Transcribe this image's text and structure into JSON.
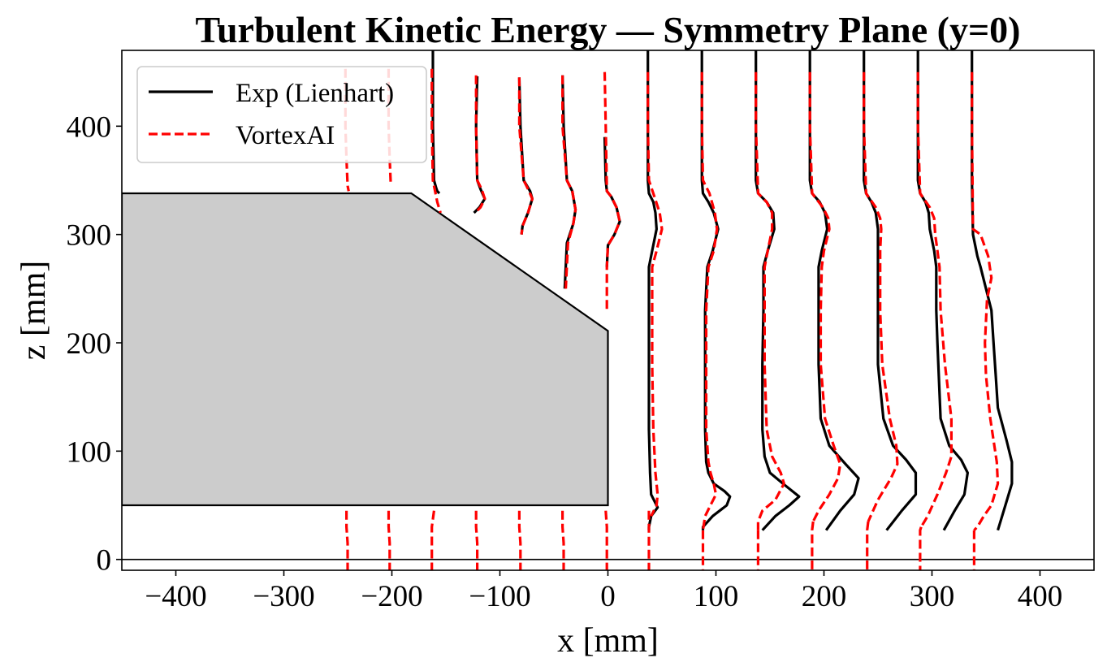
{
  "chart_data": {
    "type": "line",
    "title": "Turbulent Kinetic Energy — Symmetry Plane (y=0)",
    "xlabel": "x [mm]",
    "ylabel": "z [mm]",
    "xlim": [
      -450,
      450
    ],
    "ylim": [
      -10,
      470
    ],
    "xticks": [
      -400,
      -300,
      -200,
      -100,
      0,
      100,
      200,
      300,
      400
    ],
    "xtick_labels": [
      "−400",
      "−300",
      "−200",
      "−100",
      "0",
      "100",
      "200",
      "300",
      "400"
    ],
    "yticks": [
      0,
      100,
      200,
      300,
      400
    ],
    "ytick_labels": [
      "0",
      "100",
      "200",
      "300",
      "400"
    ],
    "legend_position": "top-left",
    "grid": false,
    "colors": {
      "exp": "#000000",
      "sim": "#ff0000",
      "body_fill": "#cccccc",
      "body_edge": "#000000"
    },
    "body_outline": {
      "x": [
        -450,
        -182,
        0,
        0,
        -450
      ],
      "z": [
        338,
        338,
        211,
        50,
        50
      ]
    },
    "ground_line_z": 0,
    "series": [
      {
        "name": "Exp (Lienhart)",
        "style": "solid",
        "profiles": [
          {
            "x": [
              -162,
              -162,
              -161,
              -159,
              -158,
              -156
            ],
            "z": [
              470,
              400,
              350,
              343,
              340,
              338
            ]
          },
          {
            "x": [
              -121,
              -122,
              -121,
              -118,
              -114,
              -119,
              -124
            ],
            "z": [
              446,
              400,
              350,
              342,
              333,
              325,
              320
            ]
          },
          {
            "x": [
              -82,
              -81,
              -78,
              -72,
              -70,
              -74,
              -79,
              -80
            ],
            "z": [
              445,
              400,
              350,
              340,
              333,
              320,
              308,
              300
            ]
          },
          {
            "x": [
              -42,
              -41,
              -38,
              -33,
              -30,
              -32,
              -38,
              -40
            ],
            "z": [
              447,
              400,
              350,
              340,
              323,
              310,
              292,
              250
            ]
          },
          {
            "x": [
              -3,
              -2,
              -1,
              3,
              8,
              11,
              6,
              0,
              -1
            ],
            "z": [
              390,
              350,
              340,
              335,
              325,
              312,
              300,
              290,
              270
            ]
          },
          {
            "x": [
              37,
              37,
              37,
              38,
              42,
              44,
              45,
              41,
              38,
              38,
              38,
              38,
              39,
              40,
              46,
              40,
              38,
              38
            ],
            "z": [
              470,
              400,
              350,
              338,
              330,
              320,
              305,
              285,
              270,
              230,
              180,
              120,
              80,
              60,
              48,
              40,
              30,
              27
            ]
          },
          {
            "x": [
              87,
              87,
              87,
              88,
              93,
              98,
              102,
              97,
              92,
              90,
              90,
              90,
              91,
              93,
              98,
              108,
              113,
              110,
              97,
              88,
              88
            ],
            "z": [
              470,
              400,
              350,
              338,
              330,
              320,
              305,
              285,
              270,
              230,
              180,
              120,
              90,
              80,
              70,
              63,
              58,
              50,
              40,
              30,
              27
            ]
          },
          {
            "x": [
              137,
              137,
              137,
              139,
              147,
              153,
              154,
              148,
              144,
              144,
              143,
              143,
              145,
              150,
              162,
              177,
              168,
              155,
              143
            ],
            "z": [
              470,
              400,
              350,
              338,
              330,
              320,
              305,
              285,
              270,
              230,
              180,
              120,
              95,
              80,
              70,
              58,
              50,
              40,
              27
            ]
          },
          {
            "x": [
              187,
              187,
              187,
              189,
              196,
              201,
              203,
              198,
              195,
              195,
              195,
              197,
              205,
              220,
              232,
              228,
              215,
              202
            ],
            "z": [
              470,
              400,
              350,
              338,
              330,
              320,
              305,
              285,
              270,
              230,
              180,
              130,
              105,
              88,
              75,
              60,
              45,
              27
            ]
          },
          {
            "x": [
              237,
              237,
              237,
              239,
              244,
              248,
              250,
              250,
              250,
              250,
              250,
              255,
              264,
              276,
              285,
              285,
              272,
              258
            ],
            "z": [
              470,
              400,
              350,
              338,
              330,
              320,
              305,
              285,
              270,
              230,
              180,
              130,
              105,
              92,
              80,
              60,
              45,
              27
            ]
          },
          {
            "x": [
              287,
              287,
              287,
              289,
              294,
              297,
              298,
              302,
              304,
              304,
              305,
              308,
              316,
              327,
              333,
              330,
              321,
              311
            ],
            "z": [
              470,
              400,
              350,
              338,
              330,
              320,
              305,
              285,
              270,
              230,
              200,
              130,
              105,
              92,
              80,
              60,
              45,
              27
            ]
          },
          {
            "x": [
              337,
              337,
              337,
              338,
              340,
              342,
              345,
              350,
              355,
              357,
              359,
              361,
              369,
              374,
              374,
              368,
              361
            ],
            "z": [
              470,
              400,
              350,
              300,
              290,
              280,
              270,
              250,
              230,
              200,
              170,
              140,
              110,
              90,
              70,
              50,
              27
            ]
          }
        ]
      },
      {
        "name": "VortexAI",
        "style": "dashed",
        "profiles": [
          {
            "x": [
              -243,
              -243,
              -242,
              -241,
              -240
            ],
            "z": [
              453,
              400,
              370,
              345,
              340
            ]
          },
          {
            "x": [
              -242,
              -242,
              -241,
              -241
            ],
            "z": [
              45,
              30,
              15,
              -10
            ]
          },
          {
            "x": [
              -203,
              -203,
              -202,
              -201
            ],
            "z": [
              453,
              400,
              370,
              345
            ]
          },
          {
            "x": [
              -203,
              -203,
              -202,
              -202
            ],
            "z": [
              45,
              30,
              15,
              -10
            ]
          },
          {
            "x": [
              -163,
              -163,
              -162,
              -160,
              -158,
              -155
            ],
            "z": [
              453,
              400,
              350,
              340,
              330,
              320
            ]
          },
          {
            "x": [
              -161,
              -163,
              -163,
              -163
            ],
            "z": [
              45,
              30,
              15,
              -10
            ]
          },
          {
            "x": [
              -122,
              -122,
              -121,
              -117,
              -114,
              -118,
              -123
            ],
            "z": [
              447,
              400,
              350,
              342,
              333,
              325,
              320
            ]
          },
          {
            "x": [
              -122,
              -122,
              -121,
              -121
            ],
            "z": [
              45,
              30,
              15,
              -10
            ]
          },
          {
            "x": [
              -82,
              -82,
              -78,
              -73,
              -70,
              -74,
              -79,
              -80
            ],
            "z": [
              445,
              400,
              350,
              340,
              333,
              320,
              308,
              300
            ]
          },
          {
            "x": [
              -82,
              -82,
              -81,
              -81
            ],
            "z": [
              45,
              30,
              15,
              -10
            ]
          },
          {
            "x": [
              -42,
              -42,
              -38,
              -33,
              -30,
              -32,
              -37,
              -39
            ],
            "z": [
              447,
              400,
              350,
              340,
              323,
              310,
              292,
              250
            ]
          },
          {
            "x": [
              -42,
              -42,
              -41,
              -41
            ],
            "z": [
              45,
              30,
              15,
              -10
            ]
          },
          {
            "x": [
              -3,
              -2,
              -1,
              3,
              8,
              11,
              6,
              0,
              -1,
              -1
            ],
            "z": [
              450,
              400,
              340,
              335,
              325,
              312,
              300,
              290,
              270,
              228
            ]
          },
          {
            "x": [
              -2,
              -1,
              -1,
              -1
            ],
            "z": [
              45,
              30,
              15,
              -10
            ]
          },
          {
            "x": [
              37,
              37,
              38,
              43,
              48,
              50,
              45,
              41,
              41,
              41,
              42,
              44,
              46,
              45,
              40
            ],
            "z": [
              450,
              400,
              350,
              335,
              320,
              305,
              285,
              270,
              230,
              180,
              120,
              80,
              60,
              50,
              40
            ]
          },
          {
            "x": [
              38,
              38,
              38,
              38
            ],
            "z": [
              45,
              30,
              15,
              -10
            ]
          },
          {
            "x": [
              87,
              87,
              88,
              94,
              99,
              101,
              98,
              93,
              91,
              91,
              91,
              93,
              95,
              98,
              100,
              95,
              90,
              88
            ],
            "z": [
              450,
              400,
              350,
              338,
              320,
              305,
              285,
              270,
              230,
              180,
              120,
              90,
              80,
              70,
              60,
              50,
              40,
              27
            ]
          },
          {
            "x": [
              88,
              88,
              88,
              88
            ],
            "z": [
              27,
              15,
              0,
              -10
            ]
          },
          {
            "x": [
              137,
              137,
              139,
              147,
              152,
              152,
              148,
              145,
              145,
              145,
              147,
              152,
              160,
              163,
              155,
              143,
              139,
              139
            ],
            "z": [
              450,
              400,
              338,
              330,
              320,
              305,
              285,
              270,
              230,
              180,
              120,
              95,
              80,
              70,
              55,
              45,
              35,
              27
            ]
          },
          {
            "x": [
              139,
              139,
              139
            ],
            "z": [
              27,
              0,
              -10
            ]
          },
          {
            "x": [
              187,
              187,
              189,
              199,
              204,
              205,
              200,
              198,
              197,
              197,
              201,
              209,
              215,
              213,
              205,
              195,
              190
            ],
            "z": [
              450,
              400,
              338,
              325,
              315,
              305,
              285,
              270,
              230,
              180,
              130,
              105,
              88,
              75,
              60,
              45,
              35
            ]
          },
          {
            "x": [
              190,
              189,
              189,
              189
            ],
            "z": [
              35,
              27,
              0,
              -10
            ]
          },
          {
            "x": [
              237,
              237,
              239,
              248,
              252,
              253,
              252,
              252,
              252,
              254,
              261,
              267,
              268,
              262,
              250,
              241
            ],
            "z": [
              450,
              400,
              338,
              325,
              315,
              305,
              285,
              270,
              230,
              180,
              130,
              105,
              88,
              75,
              55,
              35
            ]
          },
          {
            "x": [
              241,
              240,
              240,
              240
            ],
            "z": [
              35,
              27,
              0,
              -10
            ]
          },
          {
            "x": [
              287,
              287,
              289,
              298,
              302,
              303,
              305,
              307,
              308,
              312,
              318,
              318,
              313,
              305,
              296,
              290
            ],
            "z": [
              450,
              400,
              338,
              325,
              315,
              300,
              285,
              270,
              230,
              180,
              130,
              95,
              80,
              60,
              40,
              30
            ]
          },
          {
            "x": [
              290,
              289,
              289,
              289
            ],
            "z": [
              30,
              27,
              0,
              -10
            ]
          },
          {
            "x": [
              337,
              337,
              338,
              345,
              352,
              355,
              351,
              350,
              349,
              350,
              354,
              357,
              360,
              361,
              355,
              348,
              342,
              339
            ],
            "z": [
              450,
              400,
              305,
              300,
              280,
              260,
              240,
              220,
              200,
              170,
              130,
              110,
              90,
              70,
              50,
              40,
              30,
              27
            ]
          },
          {
            "x": [
              339,
              339,
              339
            ],
            "z": [
              27,
              0,
              -10
            ]
          }
        ]
      }
    ]
  }
}
